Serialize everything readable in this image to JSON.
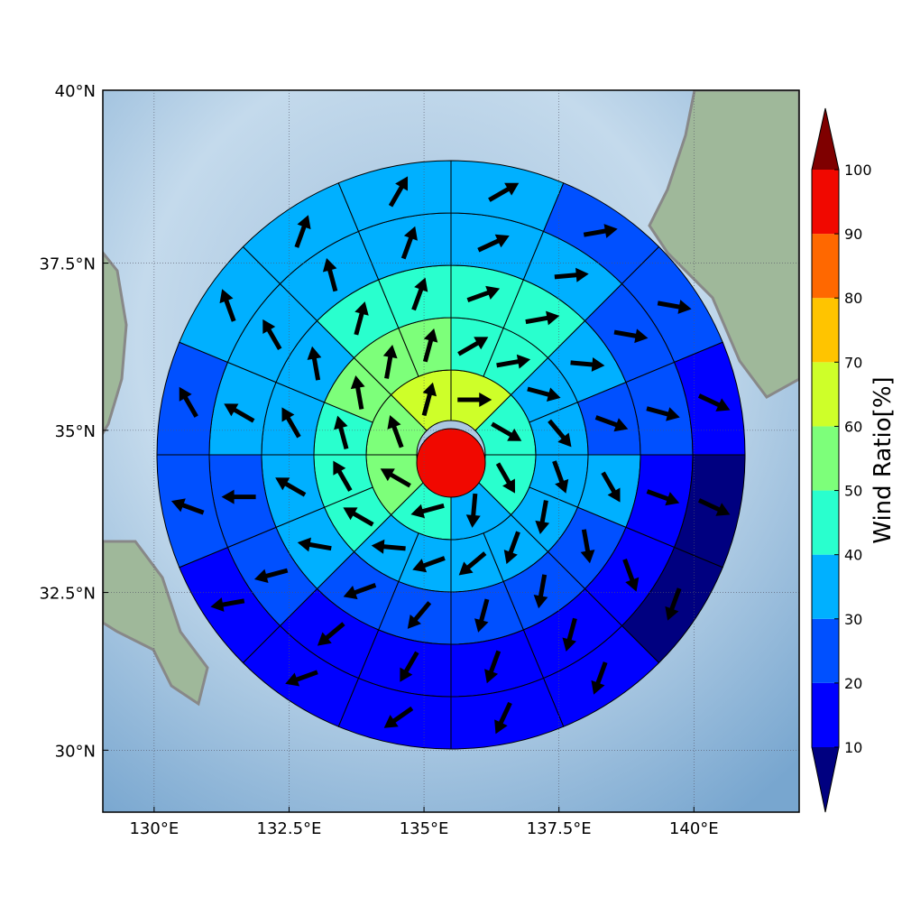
{
  "chart_data": {
    "type": "map",
    "projection": "mercator",
    "xlim": [
      129.05,
      141.95
    ],
    "ylim": [
      29,
      40
    ],
    "xticks": [
      {
        "value": 130,
        "label": "130°E"
      },
      {
        "value": 132.5,
        "label": "132.5°E"
      },
      {
        "value": 135,
        "label": "135°E"
      },
      {
        "value": 137.5,
        "label": "137.5°E"
      },
      {
        "value": 140,
        "label": "140°E"
      }
    ],
    "yticks": [
      {
        "value": 30,
        "label": "30°N"
      },
      {
        "value": 32.5,
        "label": "32.5°N"
      },
      {
        "value": 35,
        "label": "35°N"
      },
      {
        "value": 37.5,
        "label": "37.5°N"
      },
      {
        "value": 40,
        "label": "40°N"
      }
    ],
    "grid": true,
    "wind": {
      "center_value": 95,
      "rings": [
        {
          "values": [
            65,
            45,
            45,
            35,
            45,
            55,
            55,
            65
          ],
          "directions": [
            90,
            120,
            150,
            185,
            255,
            300,
            340,
            15
          ]
        },
        {
          "values": [
            45,
            45,
            35,
            35,
            35,
            35,
            35,
            35,
            35,
            35,
            45,
            45,
            45,
            55,
            55,
            55
          ],
          "directions": [
            60,
            80,
            105,
            140,
            160,
            190,
            200,
            230,
            250,
            275,
            300,
            330,
            345,
            350,
            10,
            15
          ]
        },
        {
          "values": [
            45,
            45,
            35,
            25,
            35,
            25,
            25,
            25,
            25,
            25,
            35,
            35,
            35,
            35,
            45,
            45
          ],
          "directions": [
            70,
            80,
            95,
            110,
            150,
            170,
            190,
            195,
            220,
            250,
            280,
            300,
            330,
            350,
            15,
            20
          ]
        },
        {
          "values": [
            35,
            35,
            25,
            25,
            15,
            15,
            15,
            15,
            15,
            15,
            25,
            25,
            35,
            35,
            35,
            35
          ],
          "directions": [
            65,
            85,
            100,
            105,
            110,
            160,
            195,
            200,
            210,
            230,
            255,
            270,
            300,
            330,
            345,
            20
          ]
        },
        {
          "values": [
            35,
            25,
            25,
            15,
            5,
            5,
            15,
            15,
            15,
            15,
            15,
            25,
            25,
            35,
            35,
            35
          ],
          "directions": [
            60,
            80,
            100,
            115,
            115,
            200,
            200,
            205,
            235,
            250,
            260,
            290,
            330,
            340,
            20,
            30
          ]
        }
      ]
    },
    "colorbar": {
      "label": "Wind Ratio[%]",
      "ticks": [
        10,
        20,
        30,
        40,
        50,
        60,
        70,
        80,
        90,
        100
      ],
      "colors": [
        "#0000ff",
        "#0050ff",
        "#00b0ff",
        "#29ffce",
        "#7dff7a",
        "#ceff29",
        "#ffc400",
        "#ff6800",
        "#f10800"
      ],
      "under_color": "#000080",
      "over_color": "#7f0000"
    }
  }
}
